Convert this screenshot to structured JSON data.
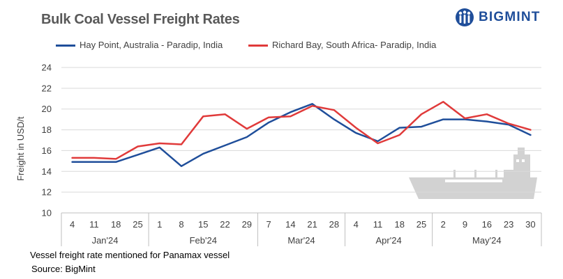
{
  "title": "Bulk Coal Vessel Freight Rates",
  "brand": {
    "name": "BIGMINT",
    "color": "#1f4e9a"
  },
  "footnote": "Vessel freight rate mentioned for Panamax vessel",
  "source": "Source: BigMint",
  "chart_data": {
    "type": "line",
    "ylabel": "Freight in USD/t",
    "ylim": [
      10,
      24
    ],
    "yticks": [
      10,
      12,
      14,
      16,
      18,
      20,
      22,
      24
    ],
    "grid": true,
    "legend_position": "top",
    "x": [
      "4",
      "11",
      "18",
      "25",
      "1",
      "8",
      "15",
      "22",
      "29",
      "7",
      "14",
      "21",
      "28",
      "4",
      "11",
      "18",
      "25",
      "2",
      "9",
      "16",
      "23",
      "30"
    ],
    "month_groups": [
      {
        "label": "Jan'24",
        "count": 4
      },
      {
        "label": "Feb'24",
        "count": 5
      },
      {
        "label": "Mar'24",
        "count": 4
      },
      {
        "label": "Apr'24",
        "count": 4
      },
      {
        "label": "May'24",
        "count": 5
      }
    ],
    "series": [
      {
        "name": "Hay Point, Australia - Paradip, India",
        "color": "#1f4e9a",
        "values": [
          14.9,
          14.9,
          14.9,
          15.6,
          16.3,
          14.5,
          15.7,
          16.5,
          17.3,
          18.7,
          19.7,
          20.5,
          19.0,
          17.7,
          16.9,
          18.2,
          18.3,
          19.0,
          19.0,
          18.8,
          18.5,
          17.5
        ]
      },
      {
        "name": "Richard Bay, South Africa- Paradip, India",
        "color": "#e03a3a",
        "values": [
          15.3,
          15.3,
          15.2,
          16.4,
          16.7,
          16.6,
          19.3,
          19.5,
          18.1,
          19.2,
          19.3,
          20.3,
          19.9,
          18.2,
          16.7,
          17.5,
          19.5,
          20.7,
          19.1,
          19.5,
          18.6,
          18.0
        ]
      }
    ]
  }
}
